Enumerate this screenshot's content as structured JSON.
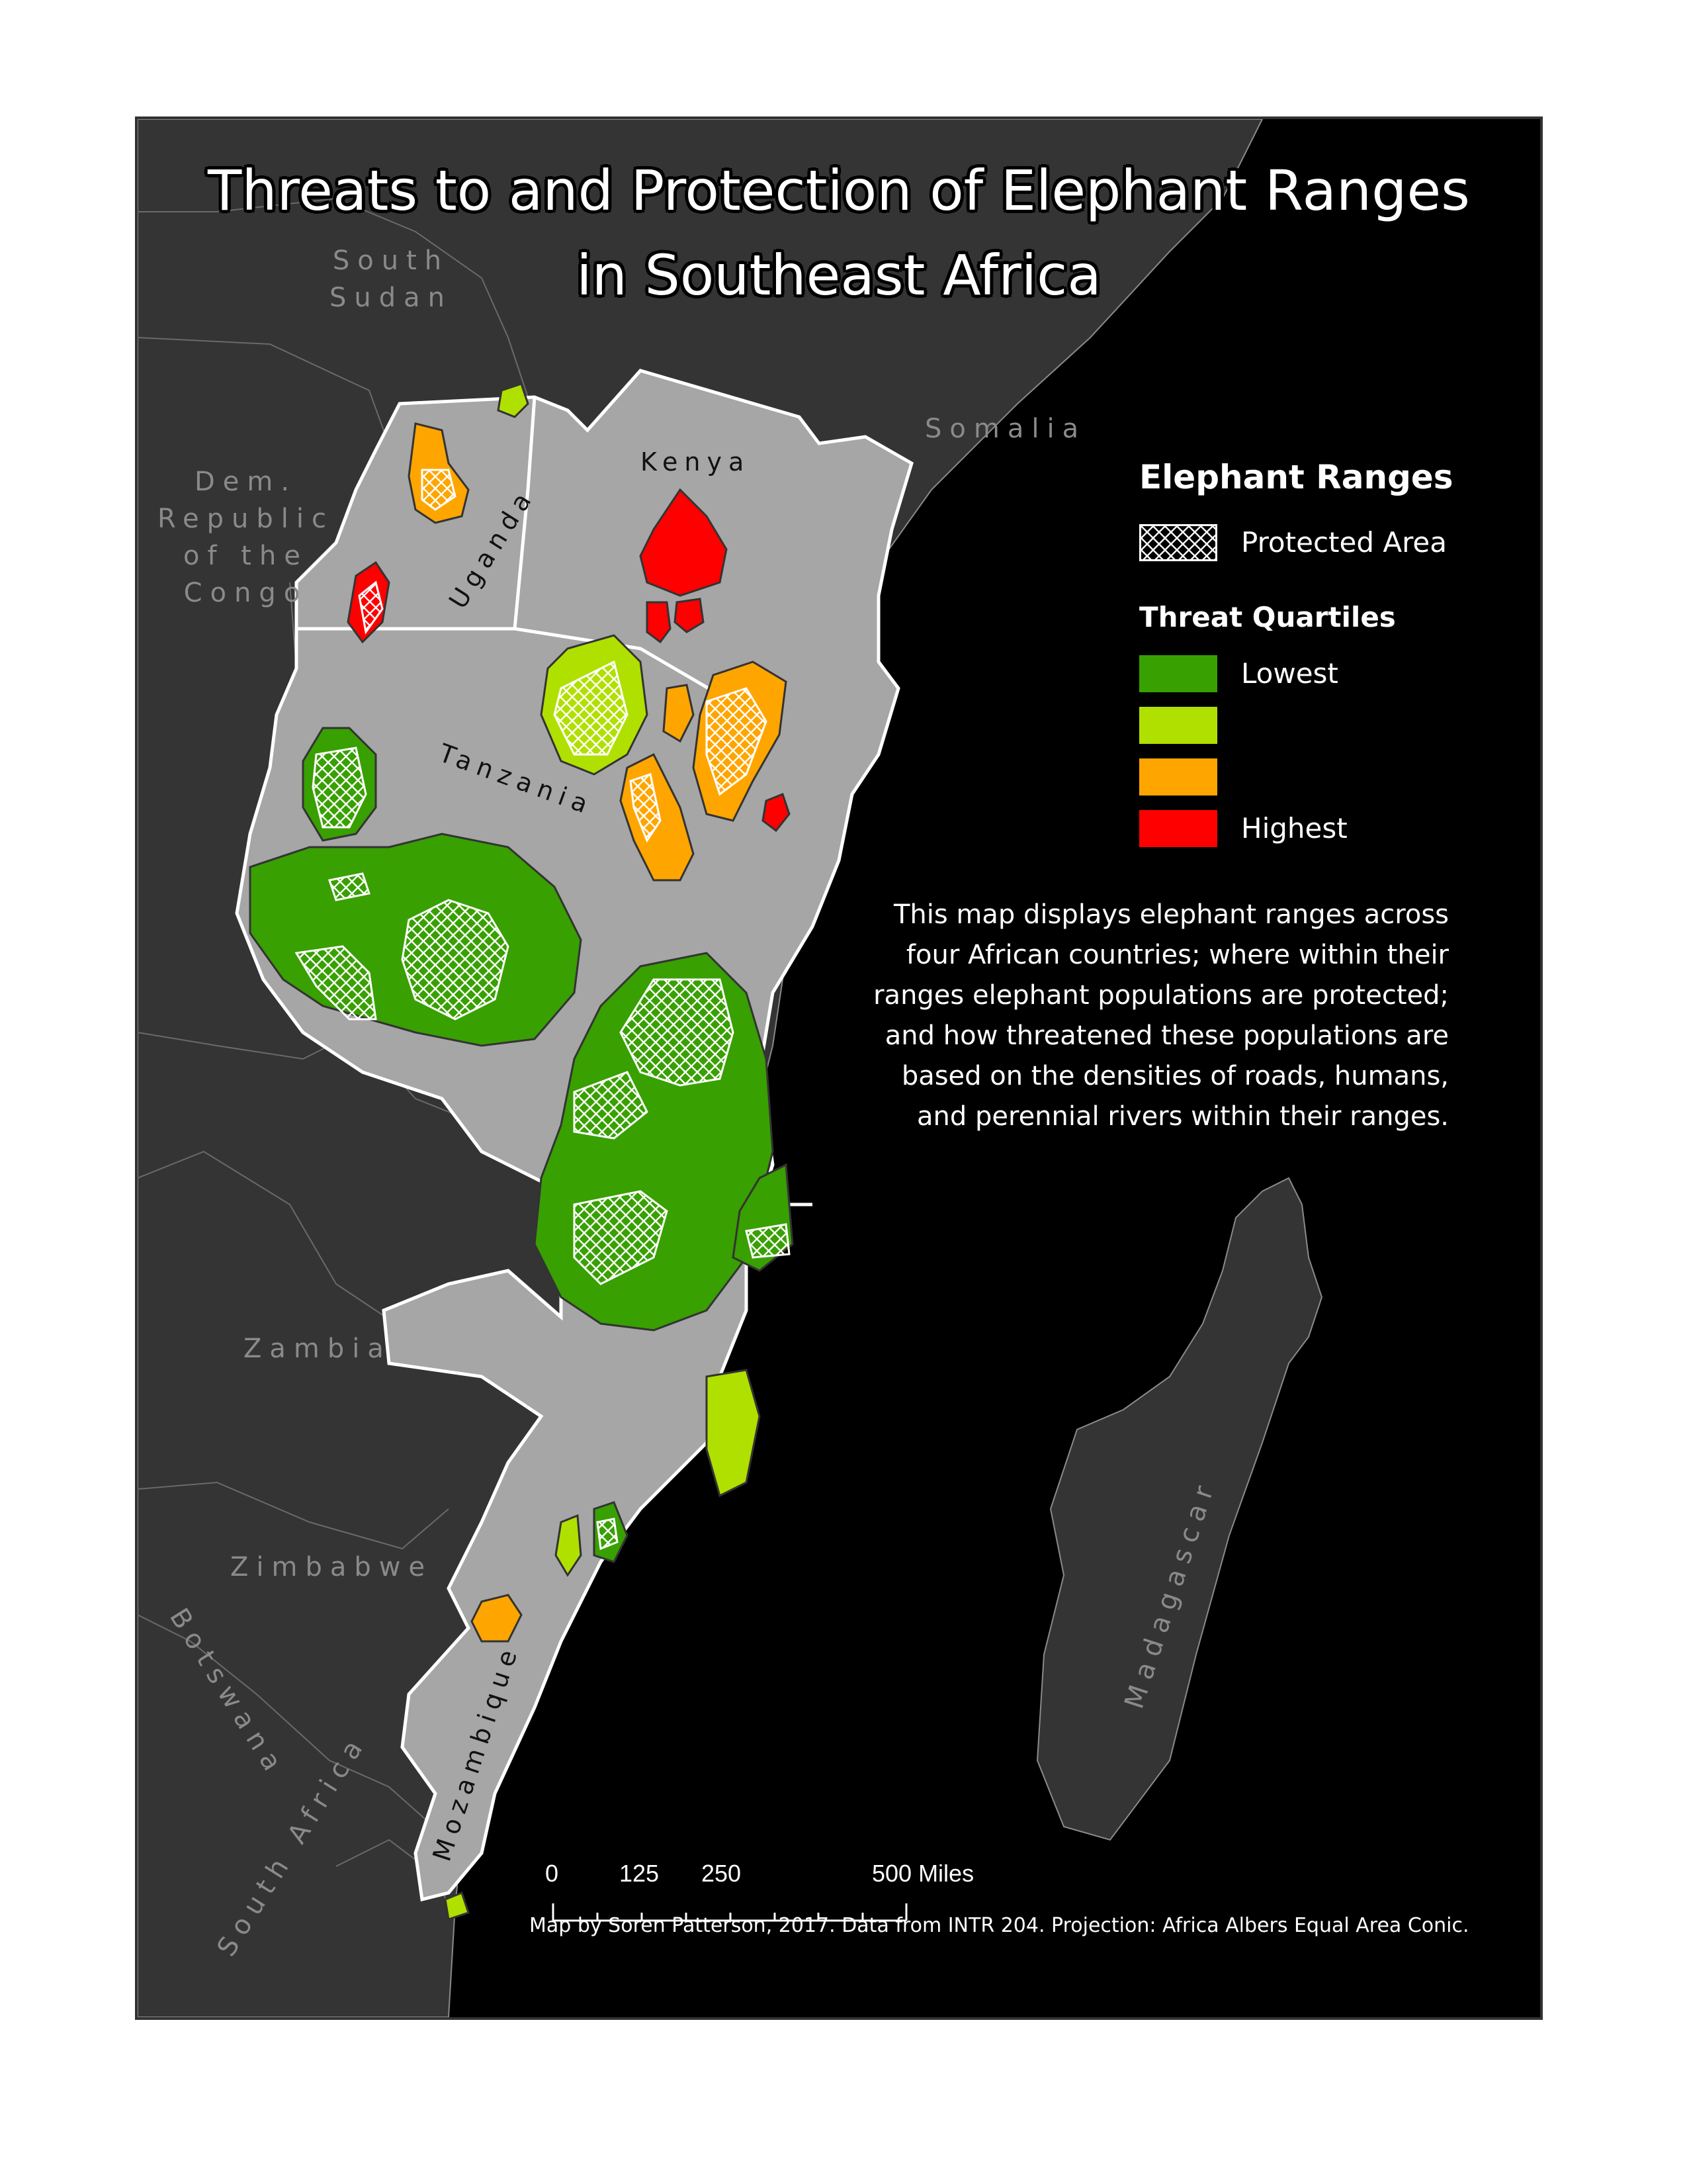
{
  "title_line1": "Threats to and Protection of Elephant Ranges",
  "title_line2": "in Southeast Africa",
  "labels": {
    "south_sudan": "South\nSudan",
    "somalia": "Somalia",
    "drc": "Dem.\nRepublic\nof the\nCongo",
    "uganda": "Uganda",
    "kenya": "Kenya",
    "tanzania": "Tanzania",
    "zambia": "Zambia",
    "zimbabwe": "Zimbabwe",
    "botswana": "Botswana",
    "south_africa": "South Africa",
    "mozambique": "Mozambique",
    "madagascar": "Madagascar"
  },
  "legend": {
    "title": "Elephant Ranges",
    "protected_label": "Protected Area",
    "threat_title": "Threat Quartiles",
    "quartiles": [
      {
        "label": "Lowest",
        "color": "#38a000"
      },
      {
        "label": "",
        "color": "#b0e000"
      },
      {
        "label": "",
        "color": "#ffa500"
      },
      {
        "label": "Highest",
        "color": "#ff0000"
      }
    ]
  },
  "description": "This map displays elephant ranges across four African countries; where within their ranges elephant populations are protected; and how threatened these populations are based on the densities of roads, humans, and perennial rivers within their ranges.",
  "scale_bar": {
    "ticks": [
      "0",
      "125",
      "250",
      "500 Miles"
    ]
  },
  "credit": "Map by Soren Patterson, 2017. Data from INTR 204. Projection: Africa Albers Equal Area Conic.",
  "colors": {
    "ocean": "#000000",
    "land_other": "#343434",
    "land_focus": "#a6a6a6",
    "border_focus": "#ffffff"
  }
}
